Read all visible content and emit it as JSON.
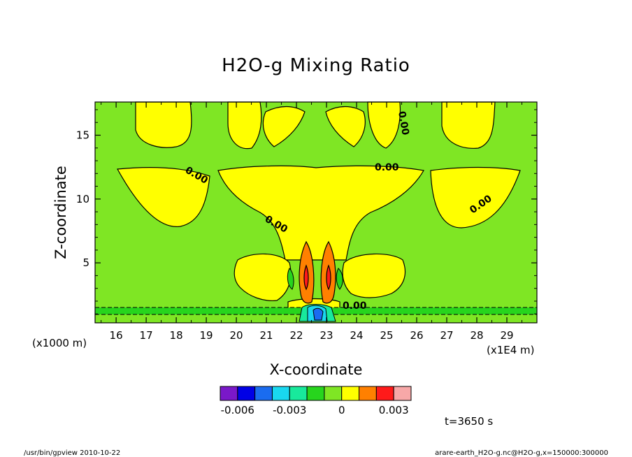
{
  "chart_data": {
    "type": "heatmap",
    "title": "H2O-g Mixing Ratio",
    "xlabel": "X-coordinate",
    "ylabel": "Z-coordinate",
    "x_unit_left": "(x1000 m)",
    "x_unit_right": "(x1E4 m)",
    "xlim": [
      15.3,
      30.0
    ],
    "ylim": [
      0.3,
      17.6
    ],
    "x_ticks": [
      "16",
      "17",
      "18",
      "19",
      "20",
      "21",
      "22",
      "23",
      "24",
      "25",
      "26",
      "27",
      "28",
      "29"
    ],
    "y_ticks": [
      "5",
      "10",
      "15"
    ],
    "contour_labels": [
      "0.00",
      "0.00",
      "0.00",
      "0.00",
      "0.00",
      "0.00"
    ],
    "colorbar": {
      "colors": [
        "#7a18c9",
        "#0000e6",
        "#1a6cf0",
        "#19d8f0",
        "#18e99c",
        "#27d51d",
        "#7fe624",
        "#ffff00",
        "#ff8000",
        "#ff1a1a",
        "#f7a8a8"
      ],
      "tick_labels": [
        "-0.006",
        "-0.003",
        "0",
        "0.003"
      ]
    },
    "time_label": "t=3650 s",
    "footer_left": "/usr/bin/gpview   2010-10-22",
    "footer_right": "arare-earth_H2O-g.nc@H2O-g,x=150000:300000"
  }
}
